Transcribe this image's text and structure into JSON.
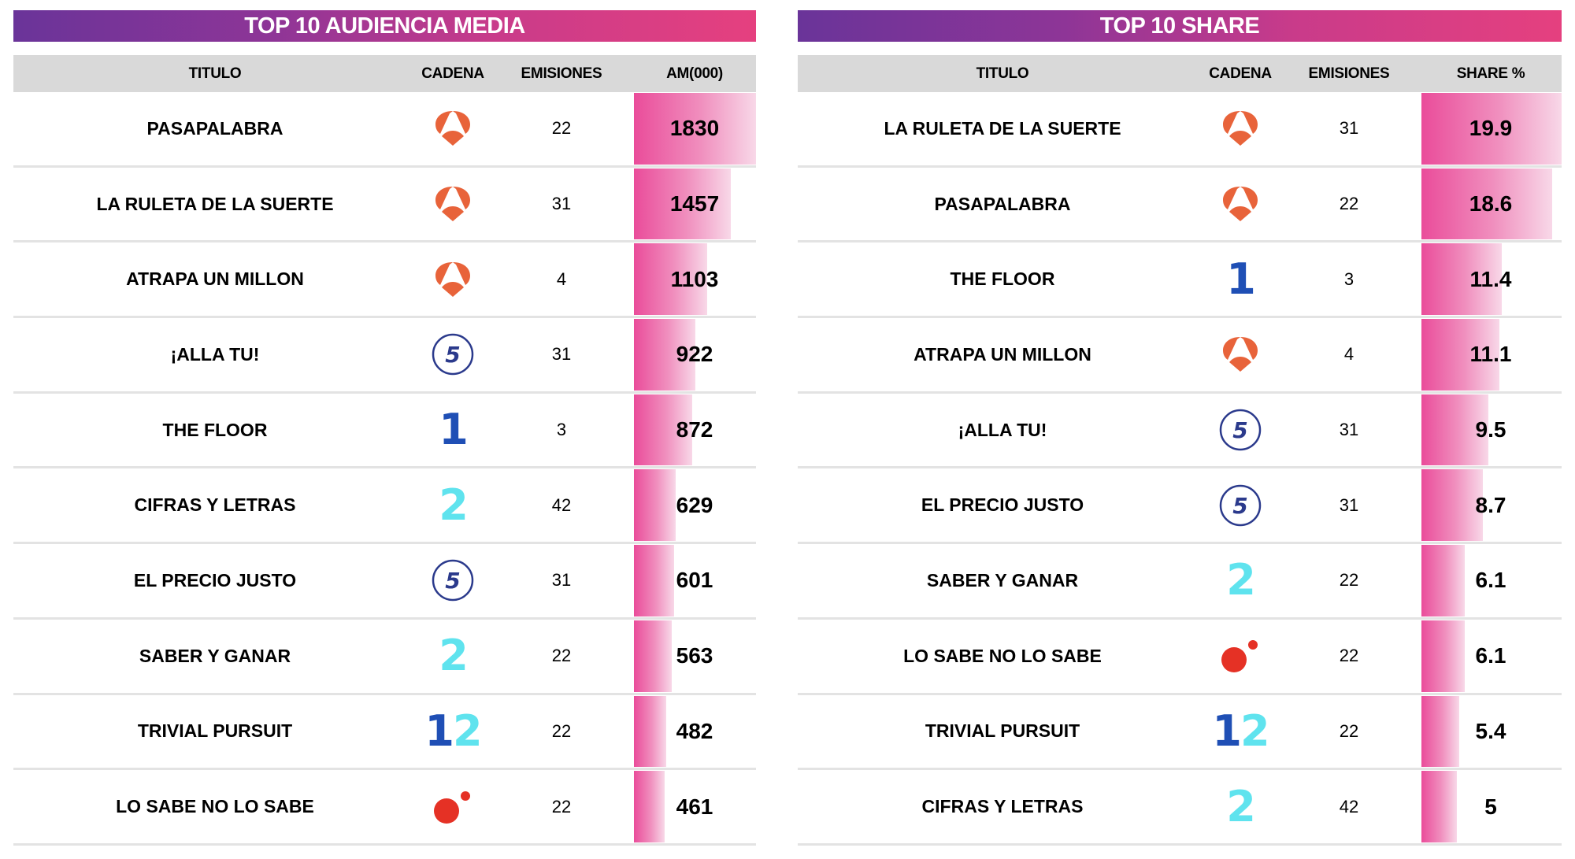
{
  "colors": {
    "banner_start": "#6a3499",
    "banner_end": "#e5407f",
    "header_bg": "#d9d9d9",
    "bar_start": "#ea4c9a",
    "bar_end": "#f8d8e8",
    "antena3": "#e8633a",
    "tele5": "#2b3a8c",
    "la1": "#1f4fb5",
    "la2": "#5fe3ee",
    "cuatro": "#e53125"
  },
  "channels": {
    "antena3": "antena3-logo-icon",
    "tele5": "telecinco-logo-icon",
    "la1": "la1-logo-icon",
    "la2": "la2-logo-icon",
    "clan12": "canal12-logo-icon",
    "cuatro": "cuatro-logo-icon"
  },
  "left": {
    "title": "TOP 10 AUDIENCIA MEDIA",
    "headers": {
      "titulo": "TITULO",
      "cadena": "CADENA",
      "emisiones": "EMISIONES",
      "value": "AM(000)"
    },
    "rows": [
      {
        "titulo": "PASAPALABRA",
        "cadena": "antena3",
        "emisiones": "22",
        "value": "1830"
      },
      {
        "titulo": "LA RULETA DE LA SUERTE",
        "cadena": "antena3",
        "emisiones": "31",
        "value": "1457"
      },
      {
        "titulo": "ATRAPA UN MILLON",
        "cadena": "antena3",
        "emisiones": "4",
        "value": "1103"
      },
      {
        "titulo": "¡ALLA TU!",
        "cadena": "tele5",
        "emisiones": "31",
        "value": "922"
      },
      {
        "titulo": "THE FLOOR",
        "cadena": "la1",
        "emisiones": "3",
        "value": "872"
      },
      {
        "titulo": "CIFRAS Y LETRAS",
        "cadena": "la2",
        "emisiones": "42",
        "value": "629"
      },
      {
        "titulo": "EL PRECIO JUSTO",
        "cadena": "tele5",
        "emisiones": "31",
        "value": "601"
      },
      {
        "titulo": "SABER Y GANAR",
        "cadena": "la2",
        "emisiones": "22",
        "value": "563"
      },
      {
        "titulo": "TRIVIAL PURSUIT",
        "cadena": "clan12",
        "emisiones": "22",
        "value": "482"
      },
      {
        "titulo": "LO SABE NO LO SABE",
        "cadena": "cuatro",
        "emisiones": "22",
        "value": "461"
      }
    ]
  },
  "right": {
    "title": "TOP 10 SHARE",
    "headers": {
      "titulo": "TITULO",
      "cadena": "CADENA",
      "emisiones": "EMISIONES",
      "value": "SHARE %"
    },
    "rows": [
      {
        "titulo": "LA RULETA DE LA SUERTE",
        "cadena": "antena3",
        "emisiones": "31",
        "value": "19.9"
      },
      {
        "titulo": "PASAPALABRA",
        "cadena": "antena3",
        "emisiones": "22",
        "value": "18.6"
      },
      {
        "titulo": "THE FLOOR",
        "cadena": "la1",
        "emisiones": "3",
        "value": "11.4"
      },
      {
        "titulo": "ATRAPA UN MILLON",
        "cadena": "antena3",
        "emisiones": "4",
        "value": "11.1"
      },
      {
        "titulo": "¡ALLA TU!",
        "cadena": "tele5",
        "emisiones": "31",
        "value": "9.5"
      },
      {
        "titulo": "EL PRECIO JUSTO",
        "cadena": "tele5",
        "emisiones": "31",
        "value": "8.7"
      },
      {
        "titulo": "SABER Y GANAR",
        "cadena": "la2",
        "emisiones": "22",
        "value": "6.1"
      },
      {
        "titulo": "LO SABE NO LO SABE",
        "cadena": "cuatro",
        "emisiones": "22",
        "value": "6.1"
      },
      {
        "titulo": "TRIVIAL PURSUIT",
        "cadena": "clan12",
        "emisiones": "22",
        "value": "5.4"
      },
      {
        "titulo": "CIFRAS Y LETRAS",
        "cadena": "la2",
        "emisiones": "42",
        "value": "5"
      }
    ]
  },
  "chart_data": [
    {
      "type": "bar",
      "title": "TOP 10 AUDIENCIA MEDIA",
      "xlabel": "TITULO",
      "ylabel": "AM(000)",
      "categories": [
        "PASAPALABRA",
        "LA RULETA DE LA SUERTE",
        "ATRAPA UN MILLON",
        "¡ALLA TU!",
        "THE FLOOR",
        "CIFRAS Y LETRAS",
        "EL PRECIO JUSTO",
        "SABER Y GANAR",
        "TRIVIAL PURSUIT",
        "LO SABE NO LO SABE"
      ],
      "values": [
        1830,
        1457,
        1103,
        922,
        872,
        629,
        601,
        563,
        482,
        461
      ],
      "extra_columns": {
        "CADENA": [
          "Antena 3",
          "Antena 3",
          "Antena 3",
          "Telecinco",
          "La 1",
          "La 2",
          "Telecinco",
          "La 2",
          "12",
          "Cuatro"
        ],
        "EMISIONES": [
          22,
          31,
          4,
          31,
          3,
          42,
          31,
          22,
          22,
          22
        ]
      },
      "orientation": "horizontal"
    },
    {
      "type": "bar",
      "title": "TOP 10 SHARE",
      "xlabel": "TITULO",
      "ylabel": "SHARE %",
      "categories": [
        "LA RULETA DE LA SUERTE",
        "PASAPALABRA",
        "THE FLOOR",
        "ATRAPA UN MILLON",
        "¡ALLA TU!",
        "EL PRECIO JUSTO",
        "SABER Y GANAR",
        "LO SABE NO LO SABE",
        "TRIVIAL PURSUIT",
        "CIFRAS Y LETRAS"
      ],
      "values": [
        19.9,
        18.6,
        11.4,
        11.1,
        9.5,
        8.7,
        6.1,
        6.1,
        5.4,
        5
      ],
      "extra_columns": {
        "CADENA": [
          "Antena 3",
          "Antena 3",
          "La 1",
          "Antena 3",
          "Telecinco",
          "Telecinco",
          "La 2",
          "Cuatro",
          "12",
          "La 2"
        ],
        "EMISIONES": [
          31,
          22,
          3,
          4,
          31,
          31,
          22,
          22,
          22,
          42
        ]
      },
      "orientation": "horizontal"
    }
  ]
}
